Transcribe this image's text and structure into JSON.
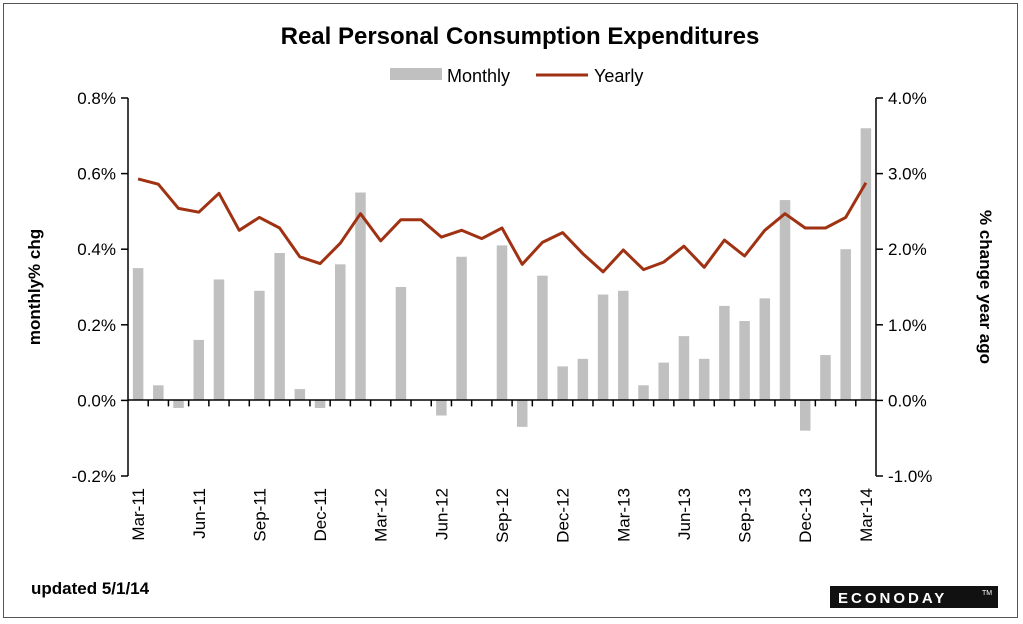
{
  "chart_data": {
    "type": "bar",
    "title": "Real Personal Consumption  Expenditures",
    "footer": "updated 5/1/14",
    "brand": "ECONODAY",
    "brand_tm": "TM",
    "legend": {
      "placement": "top-center",
      "items": [
        "Monthly",
        "Yearly"
      ]
    },
    "colors": {
      "bar": "#c0c0c0",
      "line": "#a03214"
    },
    "y_left": {
      "label": "monthly% chg",
      "range": [
        -0.2,
        0.8
      ],
      "ticks": [
        -0.2,
        0.0,
        0.2,
        0.4,
        0.6,
        0.8
      ],
      "tick_labels": [
        "-0.2%",
        "0.0%",
        "0.2%",
        "0.4%",
        "0.6%",
        "0.8%"
      ]
    },
    "y_right": {
      "label": "% change year ago",
      "range": [
        -1.0,
        4.0
      ],
      "ticks": [
        -1.0,
        0.0,
        1.0,
        2.0,
        3.0,
        4.0
      ],
      "tick_labels": [
        "-1.0%",
        "0.0%",
        "1.0%",
        "2.0%",
        "3.0%",
        "4.0%"
      ]
    },
    "x_tick_labels": [
      "Mar-11",
      "Jun-11",
      "Sep-11",
      "Dec-11",
      "Mar-12",
      "Jun-12",
      "Sep-12",
      "Dec-12",
      "Mar-13",
      "Jun-13",
      "Sep-13",
      "Dec-13",
      "Mar-14"
    ],
    "categories": [
      "Mar-11",
      "Apr-11",
      "May-11",
      "Jun-11",
      "Jul-11",
      "Aug-11",
      "Sep-11",
      "Oct-11",
      "Nov-11",
      "Dec-11",
      "Jan-12",
      "Feb-12",
      "Mar-12",
      "Apr-12",
      "May-12",
      "Jun-12",
      "Jul-12",
      "Aug-12",
      "Sep-12",
      "Oct-12",
      "Nov-12",
      "Dec-12",
      "Jan-13",
      "Feb-13",
      "Mar-13",
      "Apr-13",
      "May-13",
      "Jun-13",
      "Jul-13",
      "Aug-13",
      "Sep-13",
      "Oct-13",
      "Nov-13",
      "Dec-13",
      "Jan-14",
      "Feb-14",
      "Mar-14"
    ],
    "series": [
      {
        "name": "Monthly",
        "axis": "left",
        "values": [
          0.35,
          0.04,
          -0.02,
          0.16,
          0.32,
          0.0,
          0.29,
          0.39,
          0.03,
          -0.02,
          0.36,
          0.55,
          0.0,
          0.3,
          0.0,
          -0.04,
          0.38,
          0.0,
          0.41,
          -0.07,
          0.33,
          0.09,
          0.11,
          0.28,
          0.29,
          0.04,
          0.1,
          0.17,
          0.11,
          0.25,
          0.21,
          0.27,
          0.53,
          -0.08,
          0.12,
          0.4,
          0.72
        ]
      },
      {
        "name": "Yearly",
        "axis": "right",
        "values": [
          2.93,
          2.86,
          2.54,
          2.49,
          2.74,
          2.25,
          2.42,
          2.28,
          1.9,
          1.81,
          2.08,
          2.47,
          2.11,
          2.39,
          2.39,
          2.16,
          2.25,
          2.14,
          2.28,
          1.8,
          2.09,
          2.22,
          1.94,
          1.7,
          1.99,
          1.73,
          1.83,
          2.04,
          1.76,
          2.12,
          1.91,
          2.25,
          2.47,
          2.28,
          2.28,
          2.42,
          2.88
        ]
      }
    ],
    "grid": false
  }
}
